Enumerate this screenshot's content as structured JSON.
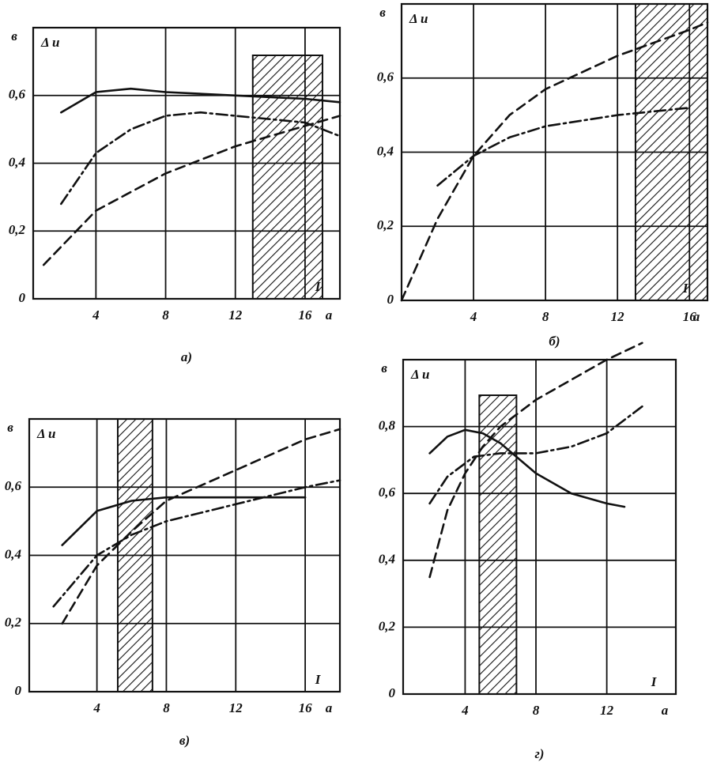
{
  "chart_data": [
    {
      "type": "line",
      "caption": "а)",
      "ylabel": "в",
      "xlabel": "а",
      "series_label": "Δ u",
      "curve_label": "I",
      "xlim": [
        0.4,
        18
      ],
      "ylim": [
        0,
        0.8
      ],
      "xticks": [
        4,
        8,
        12,
        16
      ],
      "yticks": [
        0,
        {
          "value": 0.2,
          "label": "0,2"
        },
        {
          "value": 0.4,
          "label": "0,4"
        },
        {
          "value": 0.6,
          "label": "0,6"
        }
      ],
      "band": [
        13,
        17
      ],
      "grid": true,
      "series": [
        {
          "style": "solid",
          "color": "#111111",
          "x": [
            2,
            4,
            6,
            8,
            12,
            16,
            18
          ],
          "values": [
            0.55,
            0.61,
            0.62,
            0.61,
            0.6,
            0.59,
            0.58
          ]
        },
        {
          "style": "dashdot",
          "color": "#111111",
          "x": [
            2,
            4,
            6,
            8,
            10,
            12,
            16,
            18
          ],
          "values": [
            0.28,
            0.43,
            0.5,
            0.54,
            0.55,
            0.54,
            0.52,
            0.48
          ]
        },
        {
          "style": "dashed",
          "color": "#111111",
          "x": [
            1,
            4,
            8,
            12,
            16,
            18
          ],
          "values": [
            0.1,
            0.26,
            0.37,
            0.45,
            0.51,
            0.54
          ]
        }
      ]
    },
    {
      "type": "line",
      "caption": "б)",
      "ylabel": "в",
      "xlabel": "а",
      "series_label": "Δ u",
      "curve_label": "I",
      "xlim": [
        0,
        17
      ],
      "ylim": [
        0,
        0.8
      ],
      "xticks": [
        4,
        8,
        12,
        16
      ],
      "yticks": [
        0,
        {
          "value": 0.2,
          "label": "0,2"
        },
        {
          "value": 0.4,
          "label": "0,4"
        },
        {
          "value": 0.6,
          "label": "0,6"
        }
      ],
      "band": [
        13,
        17
      ],
      "grid": true,
      "series": [
        {
          "style": "dashed",
          "color": "#111111",
          "x": [
            0,
            2,
            4,
            6,
            8,
            12,
            16,
            17
          ],
          "values": [
            0,
            0.22,
            0.39,
            0.5,
            0.57,
            0.66,
            0.73,
            0.75
          ]
        },
        {
          "style": "dashdot",
          "color": "#111111",
          "x": [
            2,
            4,
            6,
            8,
            12,
            16
          ],
          "values": [
            0.31,
            0.39,
            0.44,
            0.47,
            0.5,
            0.52
          ]
        }
      ]
    },
    {
      "type": "line",
      "caption": "в)",
      "ylabel": "в",
      "xlabel": "а",
      "series_label": "Δ u",
      "curve_label": "I",
      "xlim": [
        0.1,
        18
      ],
      "ylim": [
        0,
        0.8
      ],
      "xticks": [
        4,
        8,
        12,
        16
      ],
      "yticks": [
        0,
        {
          "value": 0.2,
          "label": "0,2"
        },
        {
          "value": 0.4,
          "label": "0,4"
        },
        {
          "value": 0.6,
          "label": "0,6"
        }
      ],
      "band": [
        5.2,
        7.2
      ],
      "grid": true,
      "series": [
        {
          "style": "solid",
          "color": "#111111",
          "x": [
            2,
            4,
            6,
            8,
            12,
            16
          ],
          "values": [
            0.43,
            0.53,
            0.56,
            0.57,
            0.57,
            0.57
          ]
        },
        {
          "style": "dashed",
          "color": "#111111",
          "x": [
            2,
            4,
            6,
            8,
            12,
            16,
            18
          ],
          "values": [
            0.2,
            0.37,
            0.47,
            0.56,
            0.65,
            0.74,
            0.77
          ]
        },
        {
          "style": "dashdot",
          "color": "#111111",
          "x": [
            1.5,
            4,
            6,
            8,
            12,
            16,
            18
          ],
          "values": [
            0.25,
            0.4,
            0.46,
            0.5,
            0.55,
            0.6,
            0.62
          ]
        }
      ]
    },
    {
      "type": "line",
      "caption": "г)",
      "ylabel": "в",
      "xlabel": "а",
      "series_label": "Δ u",
      "curve_label": "I",
      "xlim": [
        0.5,
        15.9
      ],
      "ylim": [
        0,
        1
      ],
      "xticks": [
        4,
        8,
        12
      ],
      "yticks": [
        0,
        {
          "value": 0.2,
          "label": "0,2"
        },
        {
          "value": 0.4,
          "label": "0,4"
        },
        {
          "value": 0.6,
          "label": "0,6"
        },
        {
          "value": 0.8,
          "label": "0,8"
        }
      ],
      "band": [
        4.8,
        6.9
      ],
      "grid": true,
      "series": [
        {
          "style": "solid",
          "color": "#111111",
          "x": [
            2,
            3,
            4,
            5,
            6,
            8,
            10,
            12,
            13
          ],
          "values": [
            0.72,
            0.77,
            0.79,
            0.78,
            0.75,
            0.66,
            0.6,
            0.57,
            0.56
          ]
        },
        {
          "style": "dashed",
          "color": "#111111",
          "x": [
            2,
            3,
            4,
            5,
            6,
            8,
            12,
            14
          ],
          "values": [
            0.35,
            0.55,
            0.66,
            0.74,
            0.8,
            0.88,
            1.0,
            1.05
          ]
        },
        {
          "style": "dashdot",
          "color": "#111111",
          "x": [
            2,
            3,
            4.5,
            6,
            8,
            10,
            12,
            14
          ],
          "values": [
            0.57,
            0.65,
            0.71,
            0.72,
            0.72,
            0.74,
            0.78,
            0.86
          ]
        }
      ]
    }
  ]
}
